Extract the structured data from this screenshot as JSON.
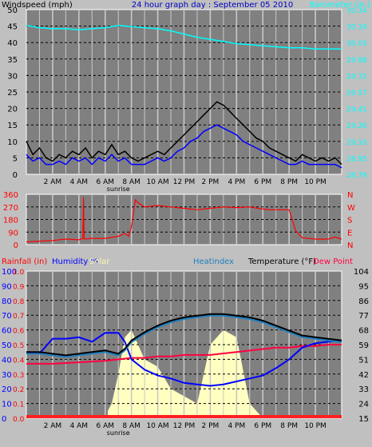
{
  "chart_data": [
    {
      "type": "line",
      "title": "24 hour graph day : September 05 2010",
      "ylabel_left": "Windspeed (mph)",
      "ylabel_right": "Barometer (in.)",
      "yticks_left": [
        "0",
        "5",
        "10",
        "15",
        "20",
        "25",
        "30",
        "35",
        "40",
        "45",
        "50"
      ],
      "yticks_right": [
        "28.79",
        "28.95",
        "29.10",
        "29.26",
        "29.41",
        "29.57",
        "29.72",
        "29.88",
        "30.03",
        "30.19",
        "30.34"
      ],
      "ylim_left": [
        0,
        50
      ],
      "ylim_right": [
        28.79,
        30.34
      ],
      "xticks": [
        "2 AM",
        "4 AM",
        "6 AM",
        "8 AM",
        "10 AM",
        "12 PM",
        "2 PM",
        "4 PM",
        "6 PM",
        "8 PM",
        "10 PM"
      ],
      "sunrise_label": "sunrise",
      "xlim": [
        0,
        24
      ],
      "series": [
        {
          "name": "Barometer",
          "color": "#00ffff",
          "x": [
            0,
            1,
            2,
            3,
            4,
            5,
            6,
            7,
            8,
            9,
            10,
            11,
            12,
            13,
            14,
            15,
            16,
            17,
            18,
            19,
            20,
            21,
            22,
            23,
            24
          ],
          "y": [
            30.19,
            30.17,
            30.16,
            30.16,
            30.15,
            30.16,
            30.17,
            30.19,
            30.18,
            30.17,
            30.16,
            30.14,
            30.11,
            30.08,
            30.06,
            30.04,
            30.02,
            30.01,
            30.0,
            29.99,
            29.98,
            29.98,
            29.97,
            29.97,
            29.97
          ]
        },
        {
          "name": "Wind gust",
          "color": "#000000",
          "x": [
            0,
            0.5,
            1,
            1.5,
            2,
            2.5,
            3,
            3.5,
            4,
            4.5,
            5,
            5.5,
            6,
            6.5,
            7,
            7.5,
            8,
            8.5,
            9,
            9.5,
            10,
            10.5,
            11,
            11.5,
            12,
            12.5,
            13,
            13.5,
            14,
            14.5,
            15,
            15.5,
            16,
            16.5,
            17,
            17.5,
            18,
            18.5,
            19,
            19.5,
            20,
            20.5,
            21,
            21.5,
            22,
            22.5,
            23,
            23.5,
            24
          ],
          "y": [
            10,
            6,
            8,
            5,
            4,
            6,
            5,
            7,
            6,
            8,
            5,
            7,
            6,
            9,
            6,
            7,
            5,
            4,
            5,
            6,
            7,
            6,
            8,
            10,
            12,
            14,
            16,
            18,
            20,
            22,
            21,
            19,
            17,
            15,
            13,
            11,
            10,
            8,
            7,
            6,
            5,
            4,
            6,
            5,
            4,
            5,
            4,
            5,
            3
          ]
        },
        {
          "name": "Wind speed",
          "color": "#0000ff",
          "x": [
            0,
            0.5,
            1,
            1.5,
            2,
            2.5,
            3,
            3.5,
            4,
            4.5,
            5,
            5.5,
            6,
            6.5,
            7,
            7.5,
            8,
            8.5,
            9,
            9.5,
            10,
            10.5,
            11,
            11.5,
            12,
            12.5,
            13,
            13.5,
            14,
            14.5,
            15,
            15.5,
            16,
            16.5,
            17,
            17.5,
            18,
            18.5,
            19,
            19.5,
            20,
            20.5,
            21,
            21.5,
            22,
            22.5,
            23,
            23.5,
            24
          ],
          "y": [
            6,
            4,
            5,
            3,
            3,
            4,
            3,
            5,
            4,
            5,
            3,
            5,
            4,
            6,
            4,
            5,
            3,
            3,
            3,
            4,
            5,
            4,
            5,
            7,
            8,
            10,
            11,
            13,
            14,
            15,
            14,
            13,
            12,
            10,
            9,
            8,
            7,
            6,
            5,
            4,
            3,
            3,
            4,
            3,
            3,
            3,
            3,
            3,
            2
          ]
        }
      ]
    },
    {
      "type": "line",
      "ylabel_left": "",
      "yticks_left": [
        "0",
        "90",
        "180",
        "270",
        "360"
      ],
      "yticks_right": [
        "N",
        "E",
        "S",
        "W",
        "N"
      ],
      "ylim_left": [
        0,
        360
      ],
      "xlim": [
        0,
        24
      ],
      "series": [
        {
          "name": "Wind direction",
          "color": "#ff0000",
          "x": [
            0,
            1,
            2,
            3,
            4,
            4.3,
            4.35,
            4.4,
            5,
            6,
            7,
            7.5,
            7.8,
            8,
            8.3,
            8.5,
            9,
            10,
            11,
            12,
            13,
            14,
            15,
            16,
            17,
            18,
            18.5,
            19,
            20,
            20.5,
            21,
            22,
            23,
            23.5,
            24
          ],
          "y": [
            20,
            25,
            30,
            40,
            35,
            45,
            340,
            40,
            45,
            45,
            60,
            80,
            60,
            130,
            320,
            300,
            270,
            280,
            270,
            260,
            250,
            260,
            270,
            265,
            270,
            255,
            250,
            250,
            250,
            100,
            50,
            40,
            40,
            55,
            40
          ]
        }
      ]
    },
    {
      "type": "line",
      "legend": [
        "Rainfall (in)",
        "Humidity %",
        "Solar",
        "Heatindex",
        "Temperature (°F)",
        "Dew Point"
      ],
      "legend_colors": [
        "#ff0000",
        "#0000ff",
        "#ffffc0",
        "#2080c0",
        "#000000",
        "#ff0040"
      ],
      "yticks_rain": [
        "0.0",
        "0.1",
        "0.2",
        "0.3",
        "0.4",
        "0.5",
        "0.6",
        "0.7",
        "0.8",
        "0.9",
        "1.0"
      ],
      "yticks_hum": [
        "0",
        "10",
        "20",
        "30",
        "40",
        "50",
        "60",
        "70",
        "80",
        "90",
        "100"
      ],
      "yticks_right": [
        "15",
        "24",
        "33",
        "42",
        "51",
        "59",
        "68",
        "77",
        "86",
        "95",
        "104"
      ],
      "ylim_right": [
        15,
        104
      ],
      "xticks": [
        "2 AM",
        "4 AM",
        "6 AM",
        "8 AM",
        "10 AM",
        "12 PM",
        "2 PM",
        "4 PM",
        "6 PM",
        "8 PM",
        "10 PM"
      ],
      "sunrise_label": "sunrise",
      "xlim": [
        0,
        24
      ],
      "series": [
        {
          "name": "Temperature",
          "color": "#000000",
          "x": [
            0,
            1,
            2,
            3,
            4,
            5,
            6,
            6.5,
            7,
            7.5,
            8,
            9,
            10,
            11,
            12,
            13,
            14,
            15,
            16,
            17,
            18,
            19,
            20,
            21,
            22,
            23,
            24
          ],
          "y": [
            55,
            55,
            54,
            53,
            54,
            55,
            56,
            55,
            54,
            57,
            62,
            67,
            71,
            74,
            76,
            77,
            78,
            78,
            77,
            76,
            74,
            71,
            68,
            65,
            64,
            63,
            62
          ]
        },
        {
          "name": "Heatindex",
          "color": "#2080c0",
          "x": [
            0,
            1,
            2,
            3,
            4,
            5,
            6,
            6.5,
            7,
            7.5,
            8,
            9,
            10,
            11,
            12,
            13,
            14,
            15,
            16,
            17,
            18,
            19,
            20,
            21,
            22,
            23,
            24
          ],
          "y": [
            54,
            54,
            53,
            52,
            53,
            54,
            55,
            54,
            53,
            56,
            61,
            66,
            70,
            73,
            75,
            76,
            77,
            77,
            76,
            75,
            73,
            70,
            67,
            64,
            63,
            62,
            61
          ]
        },
        {
          "name": "Humidity",
          "color": "#0000ff",
          "x": [
            0,
            1,
            2,
            3,
            4,
            5,
            6,
            7,
            7.5,
            8,
            9,
            10,
            11,
            12,
            13,
            14,
            15,
            16,
            17,
            18,
            19,
            20,
            21,
            22,
            23,
            24
          ],
          "y": [
            45,
            44,
            54,
            54,
            55,
            52,
            58,
            58,
            52,
            40,
            33,
            29,
            27,
            24,
            23,
            22,
            23,
            25,
            27,
            29,
            34,
            40,
            48,
            51,
            52,
            53
          ]
        },
        {
          "name": "Dew Point",
          "color": "#ff0040",
          "x": [
            0,
            2,
            4,
            6,
            7,
            8,
            9,
            10,
            11,
            12,
            13,
            14,
            15,
            16,
            17,
            18,
            19,
            20,
            21,
            22,
            23,
            24
          ],
          "y": [
            37,
            37,
            38,
            39,
            40,
            41,
            41,
            42,
            42,
            43,
            43,
            43,
            44,
            45,
            46,
            47,
            48,
            48,
            49,
            49,
            50,
            50
          ]
        },
        {
          "name": "Solar",
          "color": "#ffffc0",
          "x": [
            6.2,
            6.5,
            7,
            7.5,
            8,
            8.5,
            9,
            10,
            11,
            12,
            13,
            14,
            15,
            16,
            17,
            17.5,
            17.8,
            18
          ],
          "y": [
            0.05,
            0.1,
            0.3,
            0.55,
            0.6,
            0.5,
            0.4,
            0.35,
            0.2,
            0.15,
            0.1,
            0.5,
            0.6,
            0.55,
            0.1,
            0.05,
            0.02,
            0
          ]
        }
      ]
    }
  ]
}
